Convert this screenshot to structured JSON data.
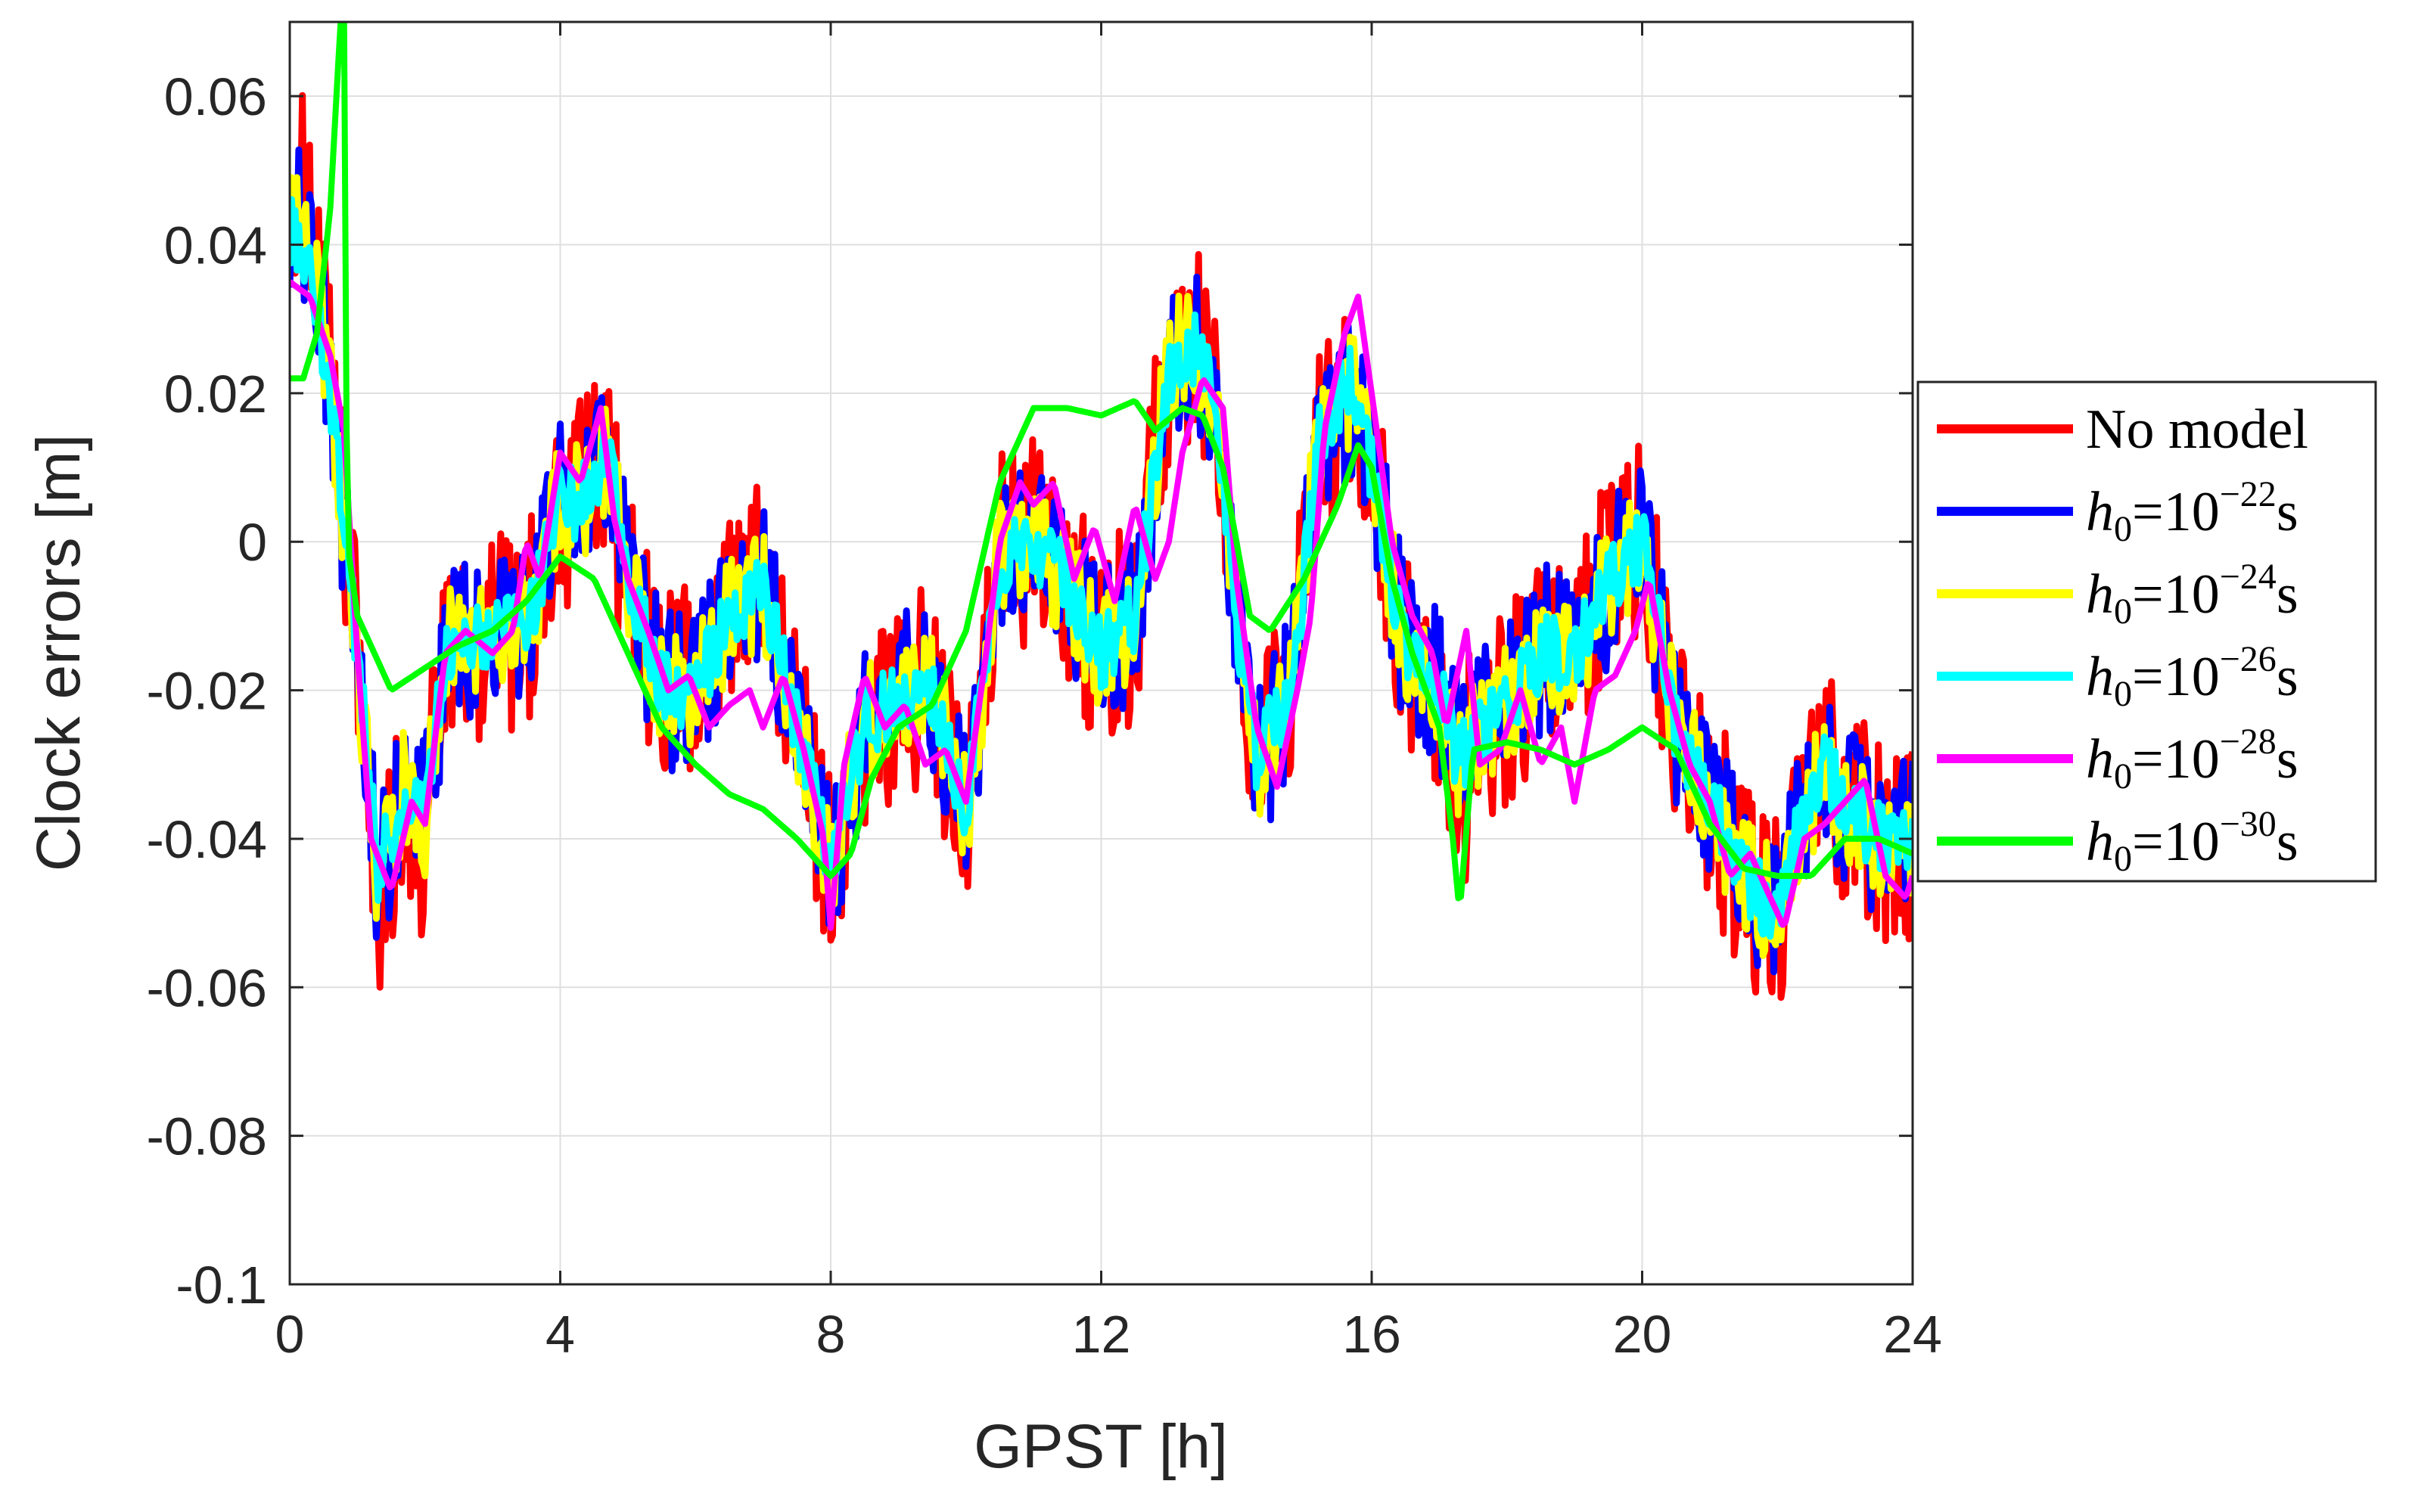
{
  "chart_data": {
    "type": "line",
    "title": "",
    "xlabel": "GPST [h]",
    "ylabel": "Clock errors [m]",
    "xlim": [
      0,
      24
    ],
    "ylim": [
      -0.1,
      0.07
    ],
    "xticks": [
      0,
      4,
      8,
      12,
      16,
      20,
      24
    ],
    "xtick_labels": [
      "0",
      "4",
      "8",
      "12",
      "16",
      "20",
      "24"
    ],
    "yticks": [
      0.06,
      0.04,
      0.02,
      0,
      -0.02,
      -0.04,
      -0.06,
      -0.08,
      -0.1
    ],
    "ytick_labels": [
      "0.06",
      "0.04",
      "0.02",
      "0",
      "-0.02",
      "-0.04",
      "-0.06",
      "-0.08",
      "-0.1"
    ],
    "grid": true,
    "legend_position": "outside-right",
    "series": [
      {
        "name": "No model",
        "legend_main": "No model",
        "legend_sub": "",
        "legend_exp": "",
        "legend_unit": "",
        "color": "#ff0000",
        "noise": 0.014,
        "x": [
          0,
          0.3,
          0.6,
          1.0,
          1.3,
          1.7,
          2.0,
          2.3,
          3.0,
          3.5,
          4.0,
          4.3,
          4.7,
          5.0,
          5.5,
          6.0,
          6.5,
          7.0,
          7.5,
          8.0,
          8.5,
          9.0,
          9.5,
          10.0,
          10.5,
          11.0,
          11.5,
          12.0,
          12.5,
          13.0,
          13.4,
          13.7,
          14.0,
          14.3,
          14.8,
          15.2,
          15.7,
          16.0,
          16.5,
          17.0,
          17.3,
          17.6,
          18.0,
          18.5,
          19.0,
          19.5,
          20.0,
          20.5,
          21.0,
          21.5,
          22.0,
          22.3,
          22.7,
          23.0,
          23.5,
          24.0
        ],
        "y": [
          0.05,
          0.045,
          0.02,
          -0.015,
          -0.048,
          -0.035,
          -0.04,
          -0.015,
          -0.012,
          -0.012,
          0.005,
          0.005,
          0.01,
          -0.005,
          -0.02,
          -0.02,
          -0.01,
          -0.005,
          -0.025,
          -0.045,
          -0.025,
          -0.02,
          -0.02,
          -0.04,
          -0.002,
          0.0,
          -0.005,
          -0.015,
          -0.01,
          0.025,
          0.028,
          0.018,
          -0.01,
          -0.03,
          -0.02,
          0.012,
          0.02,
          0.01,
          -0.015,
          -0.02,
          -0.032,
          -0.025,
          -0.022,
          -0.015,
          -0.015,
          -0.005,
          0.0,
          -0.025,
          -0.035,
          -0.045,
          -0.05,
          -0.04,
          -0.03,
          -0.035,
          -0.04,
          -0.04
        ]
      },
      {
        "name": "h0=10^-22 s",
        "legend_main": "h",
        "legend_sub": "0",
        "legend_exp": "=10−22",
        "legend_unit": "s",
        "color": "#0000ff",
        "noise": 0.011,
        "x": [
          0,
          0.3,
          0.6,
          1.0,
          1.3,
          1.7,
          2.0,
          2.3,
          3.0,
          3.5,
          4.0,
          4.3,
          4.7,
          5.0,
          5.5,
          6.0,
          6.5,
          7.0,
          7.5,
          8.0,
          8.5,
          9.0,
          9.5,
          10.0,
          10.5,
          11.0,
          11.5,
          12.0,
          12.5,
          13.0,
          13.4,
          13.7,
          14.0,
          14.3,
          14.8,
          15.2,
          15.7,
          16.0,
          16.5,
          17.0,
          17.3,
          17.6,
          18.0,
          18.5,
          19.0,
          19.5,
          20.0,
          20.5,
          21.0,
          21.5,
          22.0,
          22.3,
          22.7,
          23.0,
          23.5,
          24.0
        ],
        "y": [
          0.045,
          0.04,
          0.02,
          -0.015,
          -0.046,
          -0.034,
          -0.038,
          -0.014,
          -0.012,
          -0.012,
          0.005,
          0.005,
          0.01,
          -0.005,
          -0.02,
          -0.02,
          -0.01,
          -0.006,
          -0.025,
          -0.044,
          -0.025,
          -0.02,
          -0.02,
          -0.038,
          -0.002,
          0.0,
          -0.006,
          -0.015,
          -0.01,
          0.024,
          0.027,
          0.018,
          -0.01,
          -0.03,
          -0.02,
          0.012,
          0.02,
          0.01,
          -0.015,
          -0.02,
          -0.031,
          -0.025,
          -0.022,
          -0.015,
          -0.015,
          -0.006,
          0.0,
          -0.025,
          -0.035,
          -0.045,
          -0.05,
          -0.04,
          -0.03,
          -0.035,
          -0.04,
          -0.04
        ]
      },
      {
        "name": "h0=10^-24 s",
        "legend_main": "h",
        "legend_sub": "0",
        "legend_exp": "=10−24",
        "legend_unit": "s",
        "color": "#ffff00",
        "noise": 0.008,
        "x": [
          0,
          0.3,
          0.6,
          1.0,
          1.3,
          1.7,
          2.0,
          2.3,
          3.0,
          3.5,
          4.0,
          4.3,
          4.7,
          5.0,
          5.5,
          6.0,
          6.5,
          7.0,
          7.5,
          8.0,
          8.5,
          9.0,
          9.5,
          10.0,
          10.5,
          11.0,
          11.5,
          12.0,
          12.5,
          13.0,
          13.4,
          13.7,
          14.0,
          14.3,
          14.8,
          15.2,
          15.7,
          16.0,
          16.5,
          17.0,
          17.3,
          17.6,
          18.0,
          18.5,
          19.0,
          19.5,
          20.0,
          20.5,
          21.0,
          21.5,
          22.0,
          22.3,
          22.7,
          23.0,
          23.5,
          24.0
        ],
        "y": [
          0.045,
          0.04,
          0.02,
          -0.015,
          -0.045,
          -0.033,
          -0.037,
          -0.014,
          -0.012,
          -0.012,
          0.006,
          0.005,
          0.011,
          -0.005,
          -0.02,
          -0.02,
          -0.01,
          -0.006,
          -0.025,
          -0.044,
          -0.025,
          -0.02,
          -0.02,
          -0.037,
          -0.002,
          0.0,
          -0.006,
          -0.015,
          -0.01,
          0.024,
          0.027,
          0.018,
          -0.01,
          -0.03,
          -0.02,
          0.013,
          0.021,
          0.01,
          -0.015,
          -0.02,
          -0.03,
          -0.025,
          -0.022,
          -0.015,
          -0.015,
          -0.006,
          0.0,
          -0.025,
          -0.035,
          -0.045,
          -0.05,
          -0.04,
          -0.03,
          -0.035,
          -0.04,
          -0.04
        ]
      },
      {
        "name": "h0=10^-26 s",
        "legend_main": "h",
        "legend_sub": "0",
        "legend_exp": "=10−26",
        "legend_unit": "s",
        "color": "#00ffff",
        "noise": 0.005,
        "x": [
          0,
          0.3,
          0.6,
          1.0,
          1.3,
          1.7,
          2.0,
          2.3,
          3.0,
          3.5,
          4.0,
          4.3,
          4.7,
          5.0,
          5.5,
          6.0,
          6.5,
          7.0,
          7.5,
          8.0,
          8.5,
          9.0,
          9.5,
          10.0,
          10.5,
          11.0,
          11.5,
          12.0,
          12.5,
          13.0,
          13.4,
          13.7,
          14.0,
          14.3,
          14.8,
          15.2,
          15.7,
          16.0,
          16.5,
          17.0,
          17.3,
          17.6,
          18.0,
          18.5,
          19.0,
          19.5,
          20.0,
          20.5,
          21.0,
          21.5,
          22.0,
          22.3,
          22.7,
          23.0,
          23.5,
          24.0
        ],
        "y": [
          0.042,
          0.036,
          0.02,
          -0.015,
          -0.045,
          -0.033,
          -0.036,
          -0.014,
          -0.012,
          -0.012,
          0.006,
          0.005,
          0.012,
          -0.005,
          -0.02,
          -0.02,
          -0.01,
          -0.006,
          -0.025,
          -0.043,
          -0.025,
          -0.02,
          -0.02,
          -0.036,
          -0.002,
          0.0,
          -0.006,
          -0.015,
          -0.01,
          0.023,
          0.026,
          0.018,
          -0.01,
          -0.029,
          -0.02,
          0.013,
          0.022,
          0.01,
          -0.015,
          -0.02,
          -0.03,
          -0.025,
          -0.022,
          -0.015,
          -0.015,
          -0.006,
          0.0,
          -0.025,
          -0.035,
          -0.045,
          -0.05,
          -0.04,
          -0.03,
          -0.035,
          -0.04,
          -0.04
        ]
      },
      {
        "name": "h0=10^-28 s",
        "legend_main": "h",
        "legend_sub": "0",
        "legend_exp": "=10−28",
        "legend_unit": "s",
        "color": "#ff00ff",
        "noise": 0,
        "x": [
          0,
          0.3,
          0.6,
          0.8,
          1.0,
          1.2,
          1.5,
          1.8,
          2.0,
          2.3,
          2.6,
          3.0,
          3.3,
          3.5,
          3.7,
          4.0,
          4.3,
          4.6,
          4.8,
          5.0,
          5.3,
          5.6,
          5.9,
          6.2,
          6.5,
          6.8,
          7.0,
          7.3,
          7.6,
          7.9,
          8.0,
          8.2,
          8.5,
          8.8,
          9.1,
          9.4,
          9.7,
          10.0,
          10.3,
          10.5,
          10.8,
          11.0,
          11.3,
          11.6,
          11.9,
          12.2,
          12.5,
          12.8,
          13.0,
          13.2,
          13.5,
          13.8,
          14.0,
          14.3,
          14.6,
          14.9,
          15.1,
          15.3,
          15.6,
          15.8,
          16.0,
          16.3,
          16.6,
          16.9,
          17.1,
          17.4,
          17.6,
          17.9,
          18.2,
          18.5,
          18.8,
          19.0,
          19.3,
          19.6,
          19.9,
          20.1,
          20.4,
          20.7,
          21.0,
          21.3,
          21.6,
          21.9,
          22.1,
          22.4,
          22.7,
          23.0,
          23.3,
          23.6,
          23.9,
          24.0
        ],
        "y": [
          0.035,
          0.033,
          0.025,
          0.015,
          -0.015,
          -0.04,
          -0.047,
          -0.035,
          -0.038,
          -0.015,
          -0.012,
          -0.015,
          -0.012,
          0.0,
          -0.005,
          0.012,
          0.008,
          0.018,
          0.003,
          -0.005,
          -0.012,
          -0.02,
          -0.018,
          -0.025,
          -0.022,
          -0.02,
          -0.025,
          -0.018,
          -0.028,
          -0.04,
          -0.052,
          -0.03,
          -0.018,
          -0.025,
          -0.022,
          -0.03,
          -0.028,
          -0.035,
          -0.015,
          0.0,
          0.008,
          0.005,
          0.008,
          -0.005,
          0.002,
          -0.008,
          0.005,
          -0.005,
          0.0,
          0.012,
          0.022,
          0.018,
          -0.005,
          -0.025,
          -0.033,
          -0.02,
          -0.01,
          0.015,
          0.028,
          0.033,
          0.02,
          0.0,
          -0.01,
          -0.015,
          -0.025,
          -0.012,
          -0.03,
          -0.028,
          -0.02,
          -0.03,
          -0.025,
          -0.035,
          -0.02,
          -0.018,
          -0.012,
          -0.005,
          -0.02,
          -0.03,
          -0.035,
          -0.045,
          -0.042,
          -0.048,
          -0.052,
          -0.04,
          -0.038,
          -0.035,
          -0.032,
          -0.045,
          -0.048,
          -0.045
        ]
      },
      {
        "name": "h0=10^-30 s",
        "legend_main": "h",
        "legend_sub": "0",
        "legend_exp": "=10−30",
        "legend_unit": "s",
        "color": "#00ff00",
        "noise": 0,
        "x": [
          0,
          0.2,
          0.4,
          0.6,
          0.75,
          0.8,
          0.85,
          1.0,
          1.5,
          2.0,
          2.5,
          3.0,
          3.5,
          4.0,
          4.5,
          5.0,
          5.5,
          6.0,
          6.5,
          7.0,
          7.5,
          8.0,
          8.3,
          8.6,
          9.0,
          9.5,
          10.0,
          10.5,
          11.0,
          11.5,
          12.0,
          12.5,
          12.8,
          13.2,
          13.5,
          13.8,
          14.0,
          14.2,
          14.5,
          15.0,
          15.5,
          15.8,
          16.0,
          16.3,
          16.6,
          17.0,
          17.2,
          17.3,
          17.5,
          18.0,
          18.5,
          19.0,
          19.5,
          20.0,
          20.5,
          21.0,
          21.5,
          22.0,
          22.5,
          23.0,
          23.5,
          24.0
        ],
        "y": [
          0.022,
          0.022,
          0.028,
          0.045,
          0.07,
          0.075,
          0.0,
          -0.01,
          -0.02,
          -0.017,
          -0.014,
          -0.012,
          -0.008,
          -0.002,
          -0.005,
          -0.015,
          -0.025,
          -0.03,
          -0.034,
          -0.036,
          -0.04,
          -0.045,
          -0.042,
          -0.032,
          -0.025,
          -0.022,
          -0.012,
          0.008,
          0.018,
          0.018,
          0.017,
          0.019,
          0.015,
          0.018,
          0.017,
          0.01,
          0.0,
          -0.01,
          -0.012,
          -0.005,
          0.005,
          0.013,
          0.01,
          -0.005,
          -0.015,
          -0.025,
          -0.04,
          -0.05,
          -0.028,
          -0.027,
          -0.028,
          -0.03,
          -0.028,
          -0.025,
          -0.028,
          -0.038,
          -0.044,
          -0.045,
          -0.045,
          -0.04,
          -0.04,
          -0.042
        ]
      }
    ]
  }
}
